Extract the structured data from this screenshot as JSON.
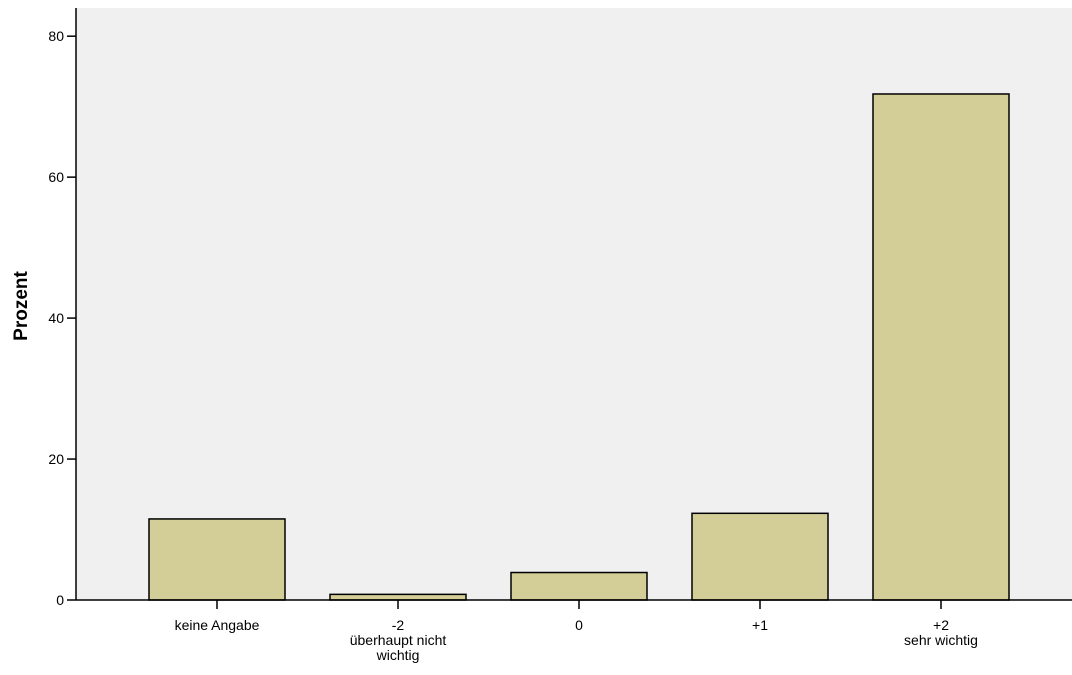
{
  "chart_data": {
    "type": "bar",
    "categories": [
      [
        "keine Angabe"
      ],
      [
        "-2",
        "überhaupt nicht",
        "wichtig"
      ],
      [
        "0"
      ],
      [
        "+1"
      ],
      [
        "+2",
        "sehr wichtig"
      ]
    ],
    "values": [
      11.5,
      0.8,
      3.9,
      12.3,
      71.8
    ],
    "ylabel": "Prozent",
    "xlabel": "",
    "title": "",
    "ylim": [
      0,
      84
    ],
    "yticks": [
      0,
      20,
      40,
      60,
      80
    ],
    "grid": false,
    "colors": {
      "bar_fill": "#d3cd98",
      "bar_stroke": "#000000",
      "plot_bg": "#f0f0f0",
      "axis": "#000000"
    }
  }
}
